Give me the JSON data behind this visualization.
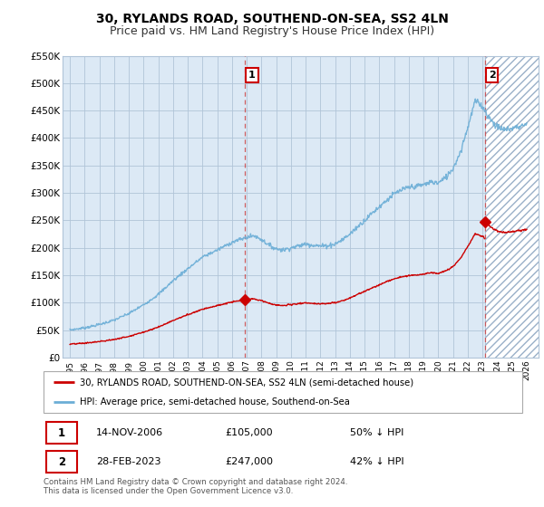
{
  "title": "30, RYLANDS ROAD, SOUTHEND-ON-SEA, SS2 4LN",
  "subtitle": "Price paid vs. HM Land Registry's House Price Index (HPI)",
  "ylim": [
    0,
    550000
  ],
  "yticks": [
    0,
    50000,
    100000,
    150000,
    200000,
    250000,
    300000,
    350000,
    400000,
    450000,
    500000,
    550000
  ],
  "ytick_labels": [
    "£0",
    "£50K",
    "£100K",
    "£150K",
    "£200K",
    "£250K",
    "£300K",
    "£350K",
    "£400K",
    "£450K",
    "£500K",
    "£550K"
  ],
  "hpi_color": "#6baed6",
  "price_color": "#cc0000",
  "sale1_x": 2006.87,
  "sale1_y": 105000,
  "sale2_x": 2023.16,
  "sale2_y": 247000,
  "vline1_x": 2006.87,
  "vline2_x": 2023.16,
  "bg_color": "#dce9f5",
  "hatch_color": "#c8d8ea",
  "grid_color": "#b0c4d8",
  "legend_house": "30, RYLANDS ROAD, SOUTHEND-ON-SEA, SS2 4LN (semi-detached house)",
  "legend_hpi": "HPI: Average price, semi-detached house, Southend-on-Sea",
  "table_row1": [
    "1",
    "14-NOV-2006",
    "£105,000",
    "50% ↓ HPI"
  ],
  "table_row2": [
    "2",
    "28-FEB-2023",
    "£247,000",
    "42% ↓ HPI"
  ],
  "footnote": "Contains HM Land Registry data © Crown copyright and database right 2024.\nThis data is licensed under the Open Government Licence v3.0.",
  "title_fontsize": 10,
  "subtitle_fontsize": 9,
  "xlim_left": 1994.5,
  "xlim_right": 2026.8
}
